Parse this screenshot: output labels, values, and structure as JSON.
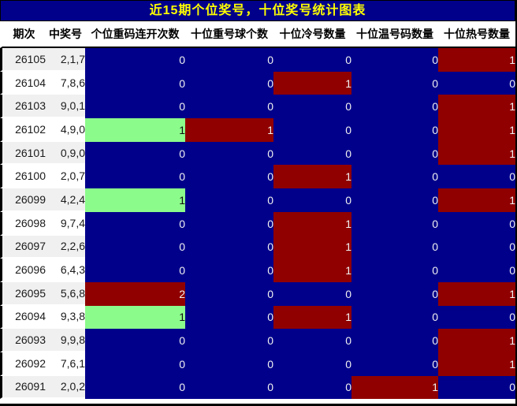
{
  "title": "近15期个位奖号，十位奖号统计图表",
  "colors": {
    "cell_navy": "#00008B",
    "highlight_red": "#900000",
    "highlight_green": "#8BFB8B",
    "title_background": "#00008B",
    "title_text": "#FFFF00",
    "row_alt_background": "#F0F0F0"
  },
  "chart_data": {
    "type": "table",
    "title": "近15期个位奖号，十位奖号统计图表",
    "columns": [
      "期次",
      "中奖号",
      "个位重码连开次数",
      "十位重号球个数",
      "十位冷号数量",
      "十位温号码数量",
      "十位热号数量"
    ],
    "rows": [
      {
        "period": "26105",
        "winning_number": "2,1,7",
        "values": [
          0,
          0,
          0,
          0,
          1
        ],
        "cell_colors": [
          "navy",
          "navy",
          "navy",
          "navy",
          "red"
        ]
      },
      {
        "period": "26104",
        "winning_number": "7,8,6",
        "values": [
          0,
          0,
          1,
          0,
          0
        ],
        "cell_colors": [
          "navy",
          "navy",
          "red",
          "navy",
          "navy"
        ]
      },
      {
        "period": "26103",
        "winning_number": "9,0,1",
        "values": [
          0,
          0,
          0,
          0,
          1
        ],
        "cell_colors": [
          "navy",
          "navy",
          "navy",
          "navy",
          "red"
        ]
      },
      {
        "period": "26102",
        "winning_number": "4,9,0",
        "values": [
          1,
          1,
          0,
          0,
          1
        ],
        "cell_colors": [
          "green",
          "red",
          "navy",
          "navy",
          "red"
        ]
      },
      {
        "period": "26101",
        "winning_number": "0,9,0",
        "values": [
          0,
          0,
          0,
          0,
          1
        ],
        "cell_colors": [
          "navy",
          "navy",
          "navy",
          "navy",
          "red"
        ]
      },
      {
        "period": "26100",
        "winning_number": "2,0,7",
        "values": [
          0,
          0,
          1,
          0,
          0
        ],
        "cell_colors": [
          "navy",
          "navy",
          "red",
          "navy",
          "navy"
        ]
      },
      {
        "period": "26099",
        "winning_number": "4,2,4",
        "values": [
          1,
          0,
          0,
          0,
          1
        ],
        "cell_colors": [
          "green",
          "navy",
          "navy",
          "navy",
          "red"
        ]
      },
      {
        "period": "26098",
        "winning_number": "9,7,4",
        "values": [
          0,
          0,
          1,
          0,
          0
        ],
        "cell_colors": [
          "navy",
          "navy",
          "red",
          "navy",
          "navy"
        ]
      },
      {
        "period": "26097",
        "winning_number": "2,2,6",
        "values": [
          0,
          0,
          1,
          0,
          0
        ],
        "cell_colors": [
          "navy",
          "navy",
          "red",
          "navy",
          "navy"
        ]
      },
      {
        "period": "26096",
        "winning_number": "6,4,3",
        "values": [
          0,
          0,
          1,
          0,
          0
        ],
        "cell_colors": [
          "navy",
          "navy",
          "red",
          "navy",
          "navy"
        ]
      },
      {
        "period": "26095",
        "winning_number": "5,6,8",
        "values": [
          2,
          0,
          0,
          0,
          1
        ],
        "cell_colors": [
          "red",
          "navy",
          "navy",
          "navy",
          "red"
        ]
      },
      {
        "period": "26094",
        "winning_number": "9,3,8",
        "values": [
          1,
          0,
          1,
          0,
          0
        ],
        "cell_colors": [
          "green",
          "navy",
          "red",
          "navy",
          "navy"
        ]
      },
      {
        "period": "26093",
        "winning_number": "9,9,8",
        "values": [
          0,
          0,
          0,
          0,
          1
        ],
        "cell_colors": [
          "navy",
          "navy",
          "navy",
          "navy",
          "red"
        ]
      },
      {
        "period": "26092",
        "winning_number": "7,6,1",
        "values": [
          0,
          0,
          0,
          0,
          1
        ],
        "cell_colors": [
          "navy",
          "navy",
          "navy",
          "navy",
          "red"
        ]
      },
      {
        "period": "26091",
        "winning_number": "2,0,2",
        "values": [
          0,
          0,
          0,
          1,
          0
        ],
        "cell_colors": [
          "navy",
          "navy",
          "navy",
          "red",
          "navy"
        ]
      }
    ],
    "legend_colors": {
      "navy": "#00008B",
      "red": "#900000",
      "green": "#8BFB8B"
    }
  }
}
